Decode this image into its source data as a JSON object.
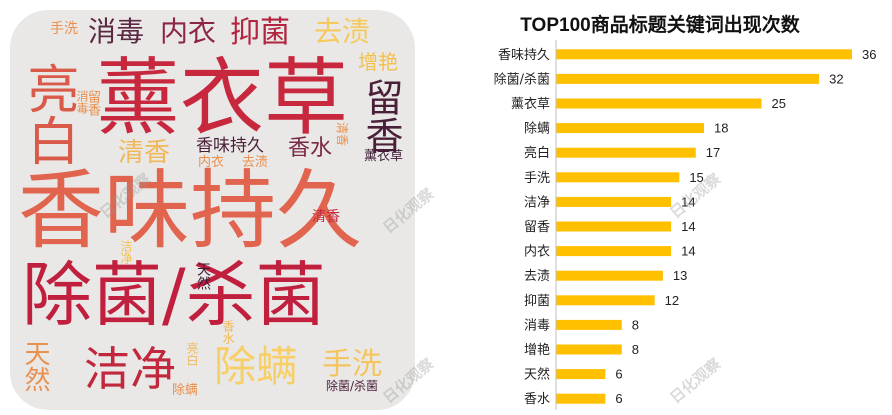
{
  "wordcloud": {
    "words": [
      {
        "text": "薰衣草",
        "color": "#c7283e"
      },
      {
        "text": "香味持久",
        "color": "#e1644e"
      },
      {
        "text": "除菌/杀菌",
        "color": "#c01f3e"
      },
      {
        "text": "亮白",
        "color": "#da5a4a"
      },
      {
        "text": "留香",
        "color": "#4a1f3a"
      },
      {
        "text": "洁净",
        "color": "#c2283d"
      },
      {
        "text": "除螨",
        "color": "#f7cf66"
      },
      {
        "text": "手洗",
        "color": "#f4c55e"
      },
      {
        "text": "消毒",
        "color": "#5b2944"
      },
      {
        "text": "内衣",
        "color": "#8c2644"
      },
      {
        "text": "抑菌",
        "color": "#b2243f"
      },
      {
        "text": "去渍",
        "color": "#f5c95c"
      },
      {
        "text": "增艳",
        "color": "#f4c04c"
      },
      {
        "text": "清香",
        "color": "#f1b85a"
      },
      {
        "text": "香水",
        "color": "#7a2844"
      },
      {
        "text": "香味持久",
        "color": "#4a1f3a"
      },
      {
        "text": "天然",
        "color": "#e9904f"
      },
      {
        "text": "手洗",
        "color": "#e9904f"
      },
      {
        "text": "留香",
        "color": "#e9904f"
      },
      {
        "text": "清香",
        "color": "#c7283e"
      },
      {
        "text": "薰衣草",
        "color": "#3e1c36"
      },
      {
        "text": "内衣",
        "color": "#e9904f"
      },
      {
        "text": "去渍",
        "color": "#e9904f"
      },
      {
        "text": "清香",
        "color": "#e9904f"
      },
      {
        "text": "天然",
        "color": "#3e1c36"
      },
      {
        "text": "洁净",
        "color": "#f4c04c"
      },
      {
        "text": "亮白",
        "color": "#f1b85a"
      },
      {
        "text": "香水",
        "color": "#f1b85a"
      },
      {
        "text": "除螨",
        "color": "#e9904f"
      },
      {
        "text": "除菌/杀菌",
        "color": "#4a1f3a"
      },
      {
        "text": "消毒",
        "color": "#e9904f"
      }
    ]
  },
  "watermark": "日化观察",
  "chart_data": {
    "type": "bar",
    "orientation": "horizontal",
    "title": "TOP100商品标题关键词出现次数",
    "categories": [
      "香味持久",
      "除菌/杀菌",
      "薰衣草",
      "除螨",
      "亮白",
      "手洗",
      "洁净",
      "留香",
      "内衣",
      "去渍",
      "抑菌",
      "消毒",
      "增艳",
      "天然",
      "香水"
    ],
    "values": [
      36,
      32,
      25,
      18,
      17,
      15,
      14,
      14,
      14,
      13,
      12,
      8,
      8,
      6,
      6
    ],
    "bar_color": "#ffc000",
    "xlim": [
      0,
      40
    ],
    "grid": false,
    "value_labels": true
  }
}
